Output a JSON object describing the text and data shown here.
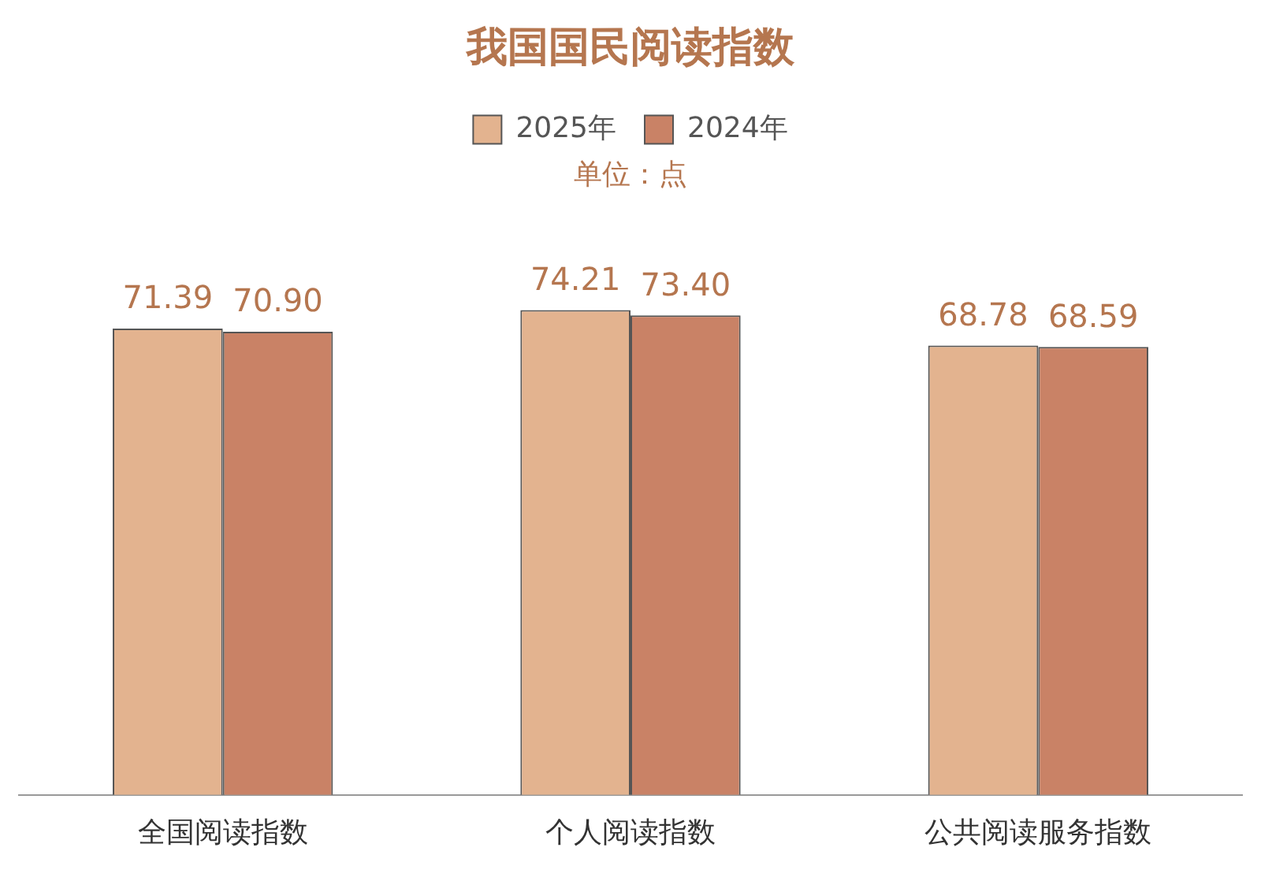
{
  "chart_data": {
    "type": "bar",
    "title": "我国国民阅读指数",
    "subtitle": "单位：点",
    "categories": [
      "全国阅读指数",
      "个人阅读指数",
      "公共阅读服务指数"
    ],
    "series": [
      {
        "name": "2025年",
        "color": "#e3b38f",
        "values": [
          71.39,
          74.21,
          68.78
        ],
        "value_labels": [
          "71.39",
          "74.21",
          "68.78"
        ]
      },
      {
        "name": "2024年",
        "color": "#c98266",
        "values": [
          70.9,
          73.4,
          68.59
        ],
        "value_labels": [
          "70.90",
          "73.40",
          "68.59"
        ]
      }
    ],
    "legend": "top",
    "grid": false
  }
}
